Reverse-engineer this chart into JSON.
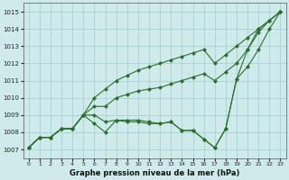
{
  "xlabel": "Graphe pression niveau de la mer (hPa)",
  "background_color": "#ceeaea",
  "grid_color": "#aad0d0",
  "line_color": "#2d6e2d",
  "x": [
    0,
    1,
    2,
    3,
    4,
    5,
    6,
    7,
    8,
    9,
    10,
    11,
    12,
    13,
    14,
    15,
    16,
    17,
    18,
    19,
    20,
    21,
    22,
    23
  ],
  "series": [
    [
      1007.1,
      1007.7,
      1007.7,
      1008.2,
      1008.2,
      1009.0,
      1008.5,
      1008.0,
      1008.7,
      1008.6,
      1008.6,
      1008.5,
      1008.5,
      1008.6,
      1008.1,
      1008.1,
      1007.6,
      1007.1,
      1008.2,
      1011.1,
      1011.8,
      1012.8,
      1014.0,
      1015.0
    ],
    [
      1007.1,
      1007.7,
      1007.7,
      1008.2,
      1008.2,
      1009.0,
      1009.0,
      1008.6,
      1008.7,
      1008.7,
      1008.7,
      1008.6,
      1008.5,
      1008.6,
      1008.1,
      1008.1,
      1007.6,
      1007.1,
      1008.2,
      1011.1,
      1012.8,
      1014.0,
      1014.5,
      1015.0
    ],
    [
      1007.1,
      1007.7,
      1007.7,
      1008.2,
      1008.2,
      1009.0,
      1009.5,
      1009.5,
      1010.0,
      1010.2,
      1010.4,
      1010.5,
      1010.6,
      1010.8,
      1011.0,
      1011.2,
      1011.4,
      1011.0,
      1011.5,
      1012.0,
      1012.8,
      1013.8,
      1014.5,
      1015.0
    ],
    [
      1007.1,
      1007.7,
      1007.7,
      1008.2,
      1008.2,
      1009.0,
      1010.0,
      1010.5,
      1011.0,
      1011.3,
      1011.6,
      1011.8,
      1012.0,
      1012.2,
      1012.4,
      1012.6,
      1012.8,
      1012.0,
      1012.5,
      1013.0,
      1013.5,
      1014.0,
      1014.5,
      1015.0
    ]
  ],
  "ylim": [
    1006.5,
    1015.5
  ],
  "yticks": [
    1007,
    1008,
    1009,
    1010,
    1011,
    1012,
    1013,
    1014,
    1015
  ],
  "xticks": [
    0,
    1,
    2,
    3,
    4,
    5,
    6,
    7,
    8,
    9,
    10,
    11,
    12,
    13,
    14,
    15,
    16,
    17,
    18,
    19,
    20,
    21,
    22,
    23
  ],
  "marker": "D",
  "markersize": 2.0,
  "linewidth": 0.8,
  "figwidth": 3.2,
  "figheight": 2.0,
  "dpi": 100
}
